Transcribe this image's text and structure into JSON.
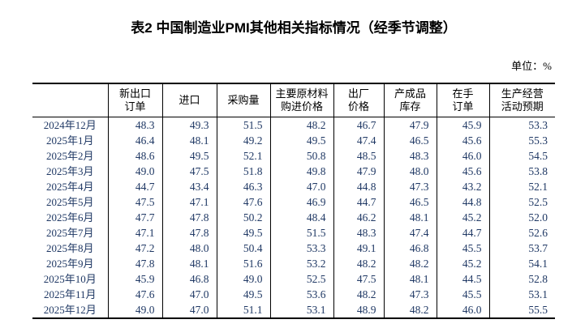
{
  "title": "表2 中国制造业PMI其他相关指标情况（经季节调整）",
  "unit_label": "单位：%",
  "table": {
    "corner_label": "",
    "columns": [
      "新出口\n订单",
      "进口",
      "采购量",
      "主要原材料\n购进价格",
      "出厂\n价格",
      "产成品\n库存",
      "在手\n订单",
      "生产经营\n活动预期"
    ],
    "rows": [
      {
        "month": "2024年12月",
        "values": [
          "48.3",
          "49.3",
          "51.5",
          "48.2",
          "46.7",
          "47.9",
          "45.9",
          "53.3"
        ]
      },
      {
        "month": "2025年1月",
        "values": [
          "46.4",
          "48.1",
          "49.2",
          "49.5",
          "47.4",
          "46.5",
          "45.6",
          "55.3"
        ]
      },
      {
        "month": "2025年2月",
        "values": [
          "48.6",
          "49.5",
          "52.1",
          "50.8",
          "48.5",
          "48.3",
          "46.0",
          "54.5"
        ]
      },
      {
        "month": "2025年3月",
        "values": [
          "49.0",
          "47.5",
          "51.8",
          "49.8",
          "47.9",
          "48.0",
          "45.6",
          "53.8"
        ]
      },
      {
        "month": "2025年4月",
        "values": [
          "44.7",
          "43.4",
          "46.3",
          "47.0",
          "44.8",
          "47.3",
          "43.2",
          "52.1"
        ]
      },
      {
        "month": "2025年5月",
        "values": [
          "47.5",
          "47.1",
          "47.6",
          "46.9",
          "44.7",
          "46.5",
          "44.8",
          "52.5"
        ]
      },
      {
        "month": "2025年6月",
        "values": [
          "47.7",
          "47.8",
          "50.2",
          "48.4",
          "46.2",
          "48.1",
          "45.2",
          "52.0"
        ]
      },
      {
        "month": "2025年7月",
        "values": [
          "47.1",
          "47.8",
          "49.5",
          "51.5",
          "48.3",
          "47.4",
          "44.7",
          "52.6"
        ]
      },
      {
        "month": "2025年8月",
        "values": [
          "47.2",
          "48.0",
          "50.4",
          "53.3",
          "49.1",
          "46.8",
          "45.5",
          "53.7"
        ]
      },
      {
        "month": "2025年9月",
        "values": [
          "47.8",
          "48.1",
          "51.6",
          "53.2",
          "48.2",
          "48.2",
          "45.2",
          "54.1"
        ]
      },
      {
        "month": "2025年10月",
        "values": [
          "45.9",
          "46.8",
          "49.0",
          "52.5",
          "47.5",
          "48.1",
          "44.5",
          "52.8"
        ]
      },
      {
        "month": "2025年11月",
        "values": [
          "47.6",
          "47.0",
          "49.5",
          "53.6",
          "48.2",
          "47.3",
          "45.5",
          "53.1"
        ]
      },
      {
        "month": "2025年12月",
        "values": [
          "49.0",
          "47.0",
          "51.1",
          "53.1",
          "48.9",
          "48.2",
          "46.0",
          "55.5"
        ]
      }
    ]
  }
}
